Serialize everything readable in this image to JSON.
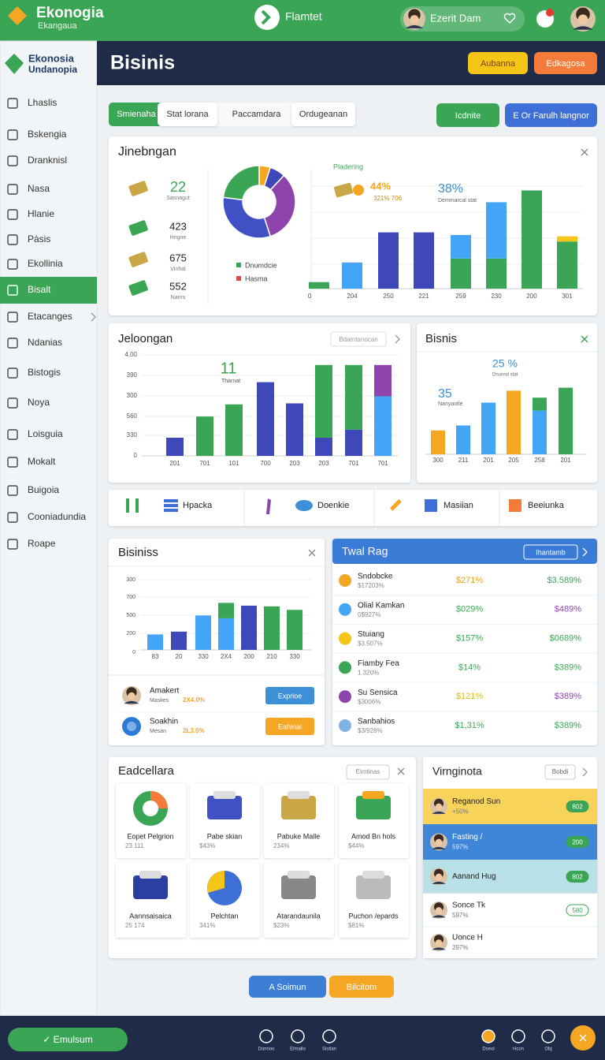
{
  "topbar": {
    "brand": "Ekonogia",
    "brand_sub": "Ekangaua",
    "center": "Flamtet",
    "user": "Ezerit Dam"
  },
  "sidebar": {
    "brand": "Ekonosia",
    "brand_sub": "Undanopia",
    "items": [
      "Lhaslis",
      "Bskengia",
      "Dranknisl",
      "Nasa",
      "Hlanie",
      "Pàsis",
      "Ekollinia",
      "Bisalt",
      "Etacanges",
      "Ndanias",
      "Bistogis",
      "Noya",
      "Loisguia",
      "Mokalt",
      "Buigoia",
      "Cooniadundia",
      "Roape"
    ],
    "active": 7
  },
  "header": {
    "title": "Bisinis",
    "buttons": [
      "Aubanna",
      "Edkagosa"
    ]
  },
  "tabs": {
    "items": [
      "Smienaha",
      "Stat lorana",
      "Paccamdara",
      "Ordugeanan"
    ],
    "active": 0,
    "actions": [
      "Icdnite",
      "E Or Farulh langnor"
    ]
  },
  "overview": {
    "title": "Jinebngan",
    "stats": [
      {
        "value": "22",
        "label": "Sasnagut"
      },
      {
        "value": "423",
        "label": "Hngne"
      },
      {
        "value": "675",
        "label": "Vinhal"
      },
      {
        "value": "552",
        "label": "Nanrs"
      }
    ],
    "donut": {
      "values": [
        5,
        7,
        33,
        32,
        23
      ],
      "colors": [
        "#f5a623",
        "#3f48b8",
        "#8e44ad",
        "#3f51c4",
        "#3aa655"
      ]
    },
    "legend": [
      {
        "label": "Dnumdcie",
        "color": "#3aa655"
      },
      {
        "label": "Hasma",
        "color": "#e04848"
      }
    ],
    "chart": {
      "title": "Pladering",
      "notes": [
        "44%",
        "321% 706",
        "38%",
        "Demmarcal stat"
      ],
      "origin_label": "0",
      "categories": [
        null,
        "204",
        "250",
        "221",
        "259",
        "230",
        "200",
        "301"
      ],
      "ylim": [
        0,
        100
      ],
      "series": [
        {
          "color": "#3aa655",
          "values": [
            5,
            0,
            0,
            0,
            23,
            23,
            75,
            36
          ]
        },
        {
          "color": "#42a5f5",
          "values": [
            0,
            20,
            0,
            0,
            18,
            43,
            0,
            0
          ]
        },
        {
          "color": "#3f48b8",
          "values": [
            0,
            0,
            43,
            43,
            0,
            0,
            0,
            0
          ]
        },
        {
          "color": "#f5c518",
          "values": [
            0,
            0,
            0,
            0,
            0,
            0,
            0,
            4
          ]
        }
      ]
    }
  },
  "sales": {
    "title": "Jeloongan",
    "button": "Bdamtanocan",
    "note": "11",
    "note_sub": "Tharnat",
    "y_labels": [
      "4,00",
      "390",
      "300",
      "560",
      "330",
      "0"
    ],
    "categories": [
      "201",
      "701",
      "101",
      "700",
      "203",
      "203",
      "701",
      "701"
    ],
    "ylim": [
      0,
      100
    ],
    "series": [
      {
        "color": "#3f48b8",
        "values": [
          18,
          0,
          0,
          73,
          52,
          18,
          26,
          0
        ]
      },
      {
        "color": "#3aa655",
        "values": [
          0,
          39,
          51,
          0,
          0,
          72,
          64,
          0
        ]
      },
      {
        "color": "#42a5f5",
        "values": [
          0,
          0,
          0,
          0,
          0,
          0,
          0,
          59
        ]
      },
      {
        "color": "#8e44ad",
        "values": [
          0,
          0,
          0,
          0,
          0,
          0,
          0,
          31
        ]
      }
    ]
  },
  "business": {
    "title": "Bisnis",
    "notes": [
      "25 %",
      "Dnunnd stat",
      "35",
      "Nanyaotle"
    ],
    "categories": [
      "300",
      "211",
      "201",
      "205",
      "258",
      "201"
    ],
    "ylim": [
      0,
      100
    ],
    "series": [
      {
        "color": "#f5a623",
        "values": [
          24,
          0,
          0,
          64,
          0,
          0
        ]
      },
      {
        "color": "#42a5f5",
        "values": [
          0,
          29,
          52,
          0,
          44,
          0
        ]
      },
      {
        "color": "#3aa655",
        "values": [
          0,
          0,
          0,
          0,
          13,
          67
        ]
      }
    ]
  },
  "strip": {
    "items": [
      "Hpacka",
      "Doenkie",
      "Masiian",
      "Beeiunka"
    ]
  },
  "bisiniss": {
    "title": "Bisiniss",
    "y_labels": [
      "300",
      "700",
      "500",
      "200",
      "0"
    ],
    "categories": [
      "83",
      "20",
      "330",
      "2X4",
      "200",
      "210",
      "330"
    ],
    "ylim": [
      0,
      100
    ],
    "series": [
      {
        "color": "#42a5f5",
        "values": [
          22,
          0,
          49,
          45,
          0,
          0,
          0
        ]
      },
      {
        "color": "#3f48b8",
        "values": [
          0,
          26,
          0,
          0,
          63,
          0,
          0
        ]
      },
      {
        "color": "#3aa655",
        "values": [
          0,
          0,
          0,
          22,
          0,
          62,
          57
        ]
      }
    ],
    "people": [
      {
        "name": "Amakert",
        "sub": "Maskes",
        "rate": "2X4.0%",
        "button": "Exprioe"
      },
      {
        "name": "Soakhin",
        "sub": "Mesan",
        "rate": "2L3.0%",
        "button": "Eahinai"
      }
    ]
  },
  "ranking": {
    "title": "Twal Rag",
    "button": "Ihantamb",
    "rows": [
      {
        "name": "Sndobcke",
        "sub": "$17203%",
        "v1": "$271%",
        "v2": "$3.589%"
      },
      {
        "name": "Olial Kamkan",
        "sub": "0$927%",
        "v1": "$029%",
        "v2": "$489%"
      },
      {
        "name": "Stuiang",
        "sub": "$3.507%",
        "v1": "$157%",
        "v2": "$0689%"
      },
      {
        "name": "Fiamby Fea",
        "sub": "1.320%",
        "v1": "$14%",
        "v2": "$389%"
      },
      {
        "name": "Su Sensica",
        "sub": "$3006%",
        "v1": "$121%",
        "v2": "$389%"
      },
      {
        "name": "Sanbahios",
        "sub": "$3/928%",
        "v1": "$1,31%",
        "v2": "$389%"
      }
    ]
  },
  "catalog": {
    "title": "Eadcellara",
    "button": "Eimtinas",
    "cards": [
      {
        "name": "Eopet Pelgrion",
        "sub": "23 111"
      },
      {
        "name": "Pabe skian",
        "sub": "$43%"
      },
      {
        "name": "Pabuke Malle",
        "sub": "234%"
      },
      {
        "name": "Amod Bn hols",
        "sub": "$44%"
      },
      {
        "name": "Aannsaisaica",
        "sub": "25 174"
      },
      {
        "name": "Pelchtan",
        "sub": "341%"
      },
      {
        "name": "Atarandaunila",
        "sub": "$23%"
      },
      {
        "name": "Puchon /epards",
        "sub": "$81%"
      }
    ]
  },
  "people": {
    "title": "Virnginota",
    "button": "Bobdi",
    "rows": [
      {
        "name": "Reganod Sun",
        "sub": "+50%",
        "badge": "802"
      },
      {
        "name": "Fasting /",
        "sub": "597%",
        "badge": "200"
      },
      {
        "name": "Aanand Hug",
        "sub": null,
        "badge": "802"
      },
      {
        "name": "Sonce Tk",
        "sub": "597%",
        "badge": "580"
      },
      {
        "name": "Uonce H",
        "sub": "297%",
        "badge": null
      }
    ]
  },
  "actions": [
    "A Soimun",
    "Bilcitom"
  ],
  "bottombar": {
    "button": "✓ Emulsum",
    "left": [
      "Donnoo",
      "Elmailo",
      "Sistlan"
    ],
    "right": [
      "Dseol",
      "Hcon",
      "Obj"
    ]
  }
}
